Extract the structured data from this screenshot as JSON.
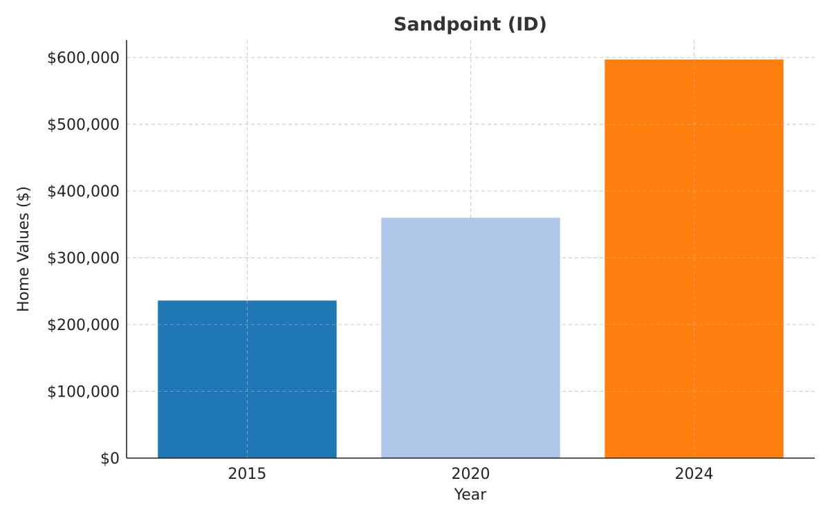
{
  "chart_data": {
    "type": "bar",
    "title": "Sandpoint (ID)",
    "xlabel": "Year",
    "ylabel": "Home Values ($)",
    "categories": [
      "2015",
      "2020",
      "2024"
    ],
    "values": [
      236000,
      360000,
      597000
    ],
    "bar_colors": [
      "#1f77b4",
      "#aec7e8",
      "#ff7f0e"
    ],
    "ylim": [
      0,
      626000
    ],
    "yticks": [
      0,
      100000,
      200000,
      300000,
      400000,
      500000,
      600000
    ],
    "ytick_labels": [
      "$0",
      "$100,000",
      "$200,000",
      "$300,000",
      "$400,000",
      "$500,000",
      "$600,000"
    ],
    "grid": true
  }
}
